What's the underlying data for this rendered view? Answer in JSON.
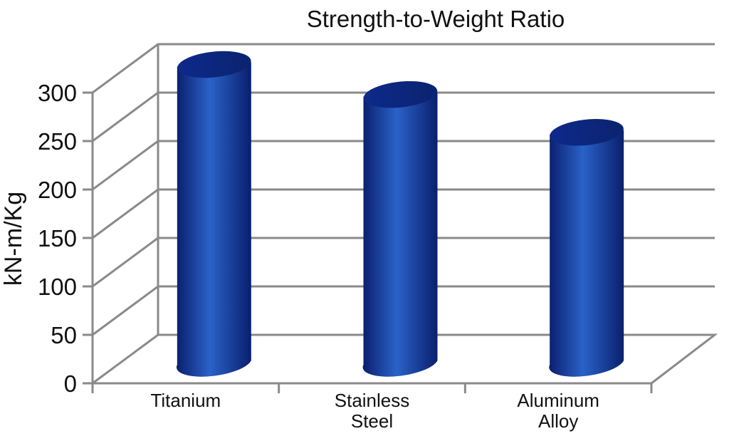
{
  "chart_data": {
    "type": "bar",
    "title": "Strength-to-Weight Ratio",
    "ylabel": "kN-m/Kg",
    "xlabel": "",
    "categories": [
      [
        "Titanium"
      ],
      [
        "Stainless",
        "Steel"
      ],
      [
        "Aluminum",
        "Alloy"
      ]
    ],
    "values": [
      318,
      287,
      248
    ],
    "ylim": [
      0,
      300
    ],
    "yticks": [
      0,
      50,
      100,
      150,
      200,
      250,
      300
    ],
    "grid": true,
    "style": "3d-cylinder",
    "bar_color": "#0d2a8a",
    "bar_highlight": "#2a62c8"
  }
}
